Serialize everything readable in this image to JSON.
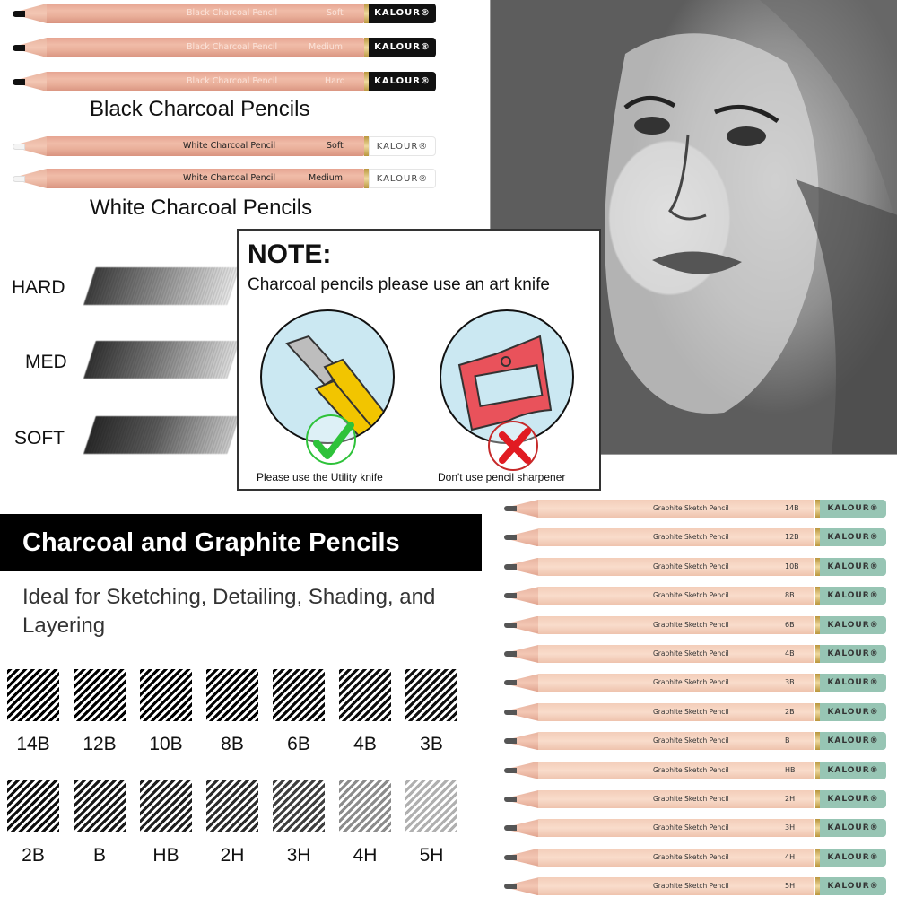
{
  "brand": "KALOUR®",
  "colors": {
    "pencil_wood": "#ecb29e",
    "black_cap": "#111111",
    "white_cap": "#ffffff",
    "graphite_cap": "#97c5b4",
    "check_green": "#2ec23a",
    "cross_red": "#e11b22",
    "knife_yellow": "#f2c500",
    "sharpener_red": "#e9525b",
    "circle_bg": "#cbe8f2"
  },
  "black_charcoal": {
    "title": "Black Charcoal Pencils",
    "pencils": [
      {
        "name": "Black Charcoal Pencil",
        "grade": "Soft",
        "cap": "KALOUR®"
      },
      {
        "name": "Black Charcoal Pencil",
        "grade": "Medium",
        "cap": "KALOUR®"
      },
      {
        "name": "Black Charcoal Pencil",
        "grade": "Hard",
        "cap": "KALOUR®"
      }
    ]
  },
  "white_charcoal": {
    "title": "White Charcoal Pencils",
    "pencils": [
      {
        "name": "White Charcoal Pencil",
        "grade": "Soft",
        "cap": "KALOUR®"
      },
      {
        "name": "White Charcoal Pencil",
        "grade": "Medium",
        "cap": "KALOUR®"
      }
    ]
  },
  "stroke_samples": [
    {
      "label": "HARD"
    },
    {
      "label": "MED"
    },
    {
      "label": "SOFT"
    }
  ],
  "note": {
    "title": "NOTE:",
    "subtitle": "Charcoal pencils please use an art knife",
    "good": {
      "caption": "Please use the Utility knife",
      "icon": "check-icon"
    },
    "bad": {
      "caption": "Don't use pencil sharpener",
      "icon": "cross-icon"
    }
  },
  "portrait": {
    "alt": "charcoal portrait sketch of a woman"
  },
  "graphite": {
    "banner": "Charcoal and Graphite Pencils",
    "tagline": "Ideal for Sketching, Detailing, Shading, and Layering",
    "swatch_rows": [
      [
        "14B",
        "12B",
        "10B",
        "8B",
        "6B",
        "4B",
        "3B"
      ],
      [
        "2B",
        "B",
        "HB",
        "2H",
        "3H",
        "4H",
        "5H"
      ]
    ],
    "pencils": [
      {
        "name": "Graphite Sketch Pencil",
        "grade": "14B",
        "cap": "KALOUR®"
      },
      {
        "name": "Graphite Sketch Pencil",
        "grade": "12B",
        "cap": "KALOUR®"
      },
      {
        "name": "Graphite Sketch Pencil",
        "grade": "10B",
        "cap": "KALOUR®"
      },
      {
        "name": "Graphite Sketch Pencil",
        "grade": "8B",
        "cap": "KALOUR®"
      },
      {
        "name": "Graphite Sketch Pencil",
        "grade": "6B",
        "cap": "KALOUR®"
      },
      {
        "name": "Graphite Sketch Pencil",
        "grade": "4B",
        "cap": "KALOUR®"
      },
      {
        "name": "Graphite Sketch Pencil",
        "grade": "3B",
        "cap": "KALOUR®"
      },
      {
        "name": "Graphite Sketch Pencil",
        "grade": "2B",
        "cap": "KALOUR®"
      },
      {
        "name": "Graphite Sketch Pencil",
        "grade": "B",
        "cap": "KALOUR®"
      },
      {
        "name": "Graphite Sketch Pencil",
        "grade": "HB",
        "cap": "KALOUR®"
      },
      {
        "name": "Graphite Sketch Pencil",
        "grade": "2H",
        "cap": "KALOUR®"
      },
      {
        "name": "Graphite Sketch Pencil",
        "grade": "3H",
        "cap": "KALOUR®"
      },
      {
        "name": "Graphite Sketch Pencil",
        "grade": "4H",
        "cap": "KALOUR®"
      },
      {
        "name": "Graphite Sketch Pencil",
        "grade": "5H",
        "cap": "KALOUR®"
      }
    ]
  }
}
